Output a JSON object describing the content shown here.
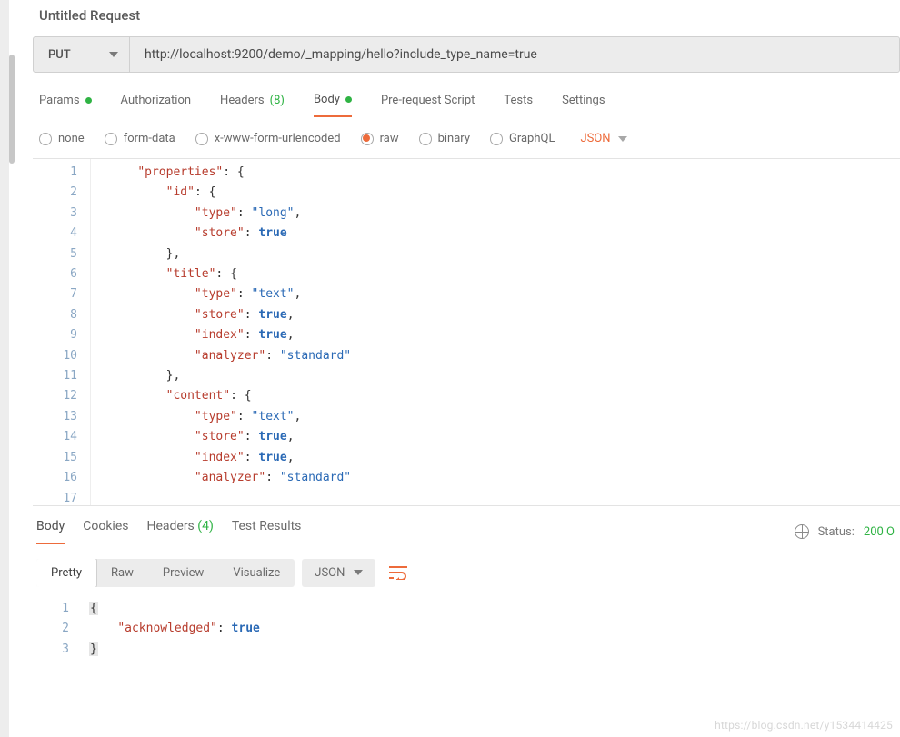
{
  "title": "Untitled Request",
  "request": {
    "method": "PUT",
    "url": "http://localhost:9200/demo/_mapping/hello?include_type_name=true"
  },
  "reqTabs": {
    "params": "Params",
    "paramsDot": true,
    "authorization": "Authorization",
    "headers": "Headers",
    "headersCount": "(8)",
    "body": "Body",
    "bodyDot": true,
    "prerequest": "Pre-request Script",
    "tests": "Tests",
    "settings": "Settings",
    "active": "body"
  },
  "bodyTypes": {
    "none": "none",
    "formdata": "form-data",
    "xwww": "x-www-form-urlencoded",
    "raw": "raw",
    "binary": "binary",
    "graphql": "GraphQL",
    "selected": "raw",
    "format": "JSON"
  },
  "editor": {
    "startLine": 1,
    "lines": [
      {
        "n": 1,
        "indent": 0,
        "tokens": []
      },
      {
        "n": 2,
        "indent": 1,
        "tokens": [
          [
            "key",
            "\"properties\""
          ],
          [
            "punct",
            ": {"
          ]
        ]
      },
      {
        "n": 3,
        "indent": 2,
        "tokens": [
          [
            "key",
            "\"id\""
          ],
          [
            "punct",
            ": {"
          ]
        ]
      },
      {
        "n": 4,
        "indent": 3,
        "tokens": [
          [
            "key",
            "\"type\""
          ],
          [
            "punct",
            ": "
          ],
          [
            "str",
            "\"long\""
          ],
          [
            "punct",
            ","
          ]
        ]
      },
      {
        "n": 5,
        "indent": 3,
        "tokens": [
          [
            "key",
            "\"store\""
          ],
          [
            "punct",
            ": "
          ],
          [
            "kw",
            "true"
          ]
        ]
      },
      {
        "n": 6,
        "indent": 2,
        "tokens": [
          [
            "punct",
            "},"
          ]
        ]
      },
      {
        "n": 7,
        "indent": 2,
        "tokens": [
          [
            "key",
            "\"title\""
          ],
          [
            "punct",
            ": {"
          ]
        ]
      },
      {
        "n": 8,
        "indent": 3,
        "tokens": [
          [
            "key",
            "\"type\""
          ],
          [
            "punct",
            ": "
          ],
          [
            "str",
            "\"text\""
          ],
          [
            "punct",
            ","
          ]
        ]
      },
      {
        "n": 9,
        "indent": 3,
        "tokens": [
          [
            "key",
            "\"store\""
          ],
          [
            "punct",
            ": "
          ],
          [
            "kw",
            "true"
          ],
          [
            "punct",
            ","
          ]
        ]
      },
      {
        "n": 10,
        "indent": 3,
        "tokens": [
          [
            "key",
            "\"index\""
          ],
          [
            "punct",
            ": "
          ],
          [
            "kw",
            "true"
          ],
          [
            "punct",
            ","
          ]
        ]
      },
      {
        "n": 11,
        "indent": 3,
        "tokens": [
          [
            "key",
            "\"analyzer\""
          ],
          [
            "punct",
            ": "
          ],
          [
            "str",
            "\"standard\""
          ]
        ]
      },
      {
        "n": 12,
        "indent": 2,
        "tokens": [
          [
            "punct",
            "},"
          ]
        ]
      },
      {
        "n": 13,
        "indent": 2,
        "tokens": [
          [
            "key",
            "\"content\""
          ],
          [
            "punct",
            ": {"
          ]
        ]
      },
      {
        "n": 14,
        "indent": 3,
        "tokens": [
          [
            "key",
            "\"type\""
          ],
          [
            "punct",
            ": "
          ],
          [
            "str",
            "\"text\""
          ],
          [
            "punct",
            ","
          ]
        ]
      },
      {
        "n": 15,
        "indent": 3,
        "tokens": [
          [
            "key",
            "\"store\""
          ],
          [
            "punct",
            ": "
          ],
          [
            "kw",
            "true"
          ],
          [
            "punct",
            ","
          ]
        ]
      },
      {
        "n": 16,
        "indent": 3,
        "tokens": [
          [
            "key",
            "\"index\""
          ],
          [
            "punct",
            ": "
          ],
          [
            "kw",
            "true"
          ],
          [
            "punct",
            ","
          ]
        ]
      },
      {
        "n": 17,
        "indent": 3,
        "tokens": [
          [
            "key",
            "\"analyzer\""
          ],
          [
            "punct",
            ": "
          ],
          [
            "str",
            "\"standard\""
          ]
        ]
      }
    ]
  },
  "respTabs": {
    "body": "Body",
    "cookies": "Cookies",
    "headers": "Headers",
    "headersCount": "(4)",
    "testresults": "Test Results",
    "active": "body",
    "statusLabel": "Status:",
    "statusValue": "200 O"
  },
  "respToolbar": {
    "pretty": "Pretty",
    "raw": "Raw",
    "preview": "Preview",
    "visualize": "Visualize",
    "format": "JSON",
    "active": "pretty"
  },
  "respEditor": {
    "lines": [
      {
        "n": 1,
        "indent": 0,
        "tokens": [
          [
            "hl",
            "{"
          ]
        ]
      },
      {
        "n": 2,
        "indent": 1,
        "tokens": [
          [
            "key",
            "\"acknowledged\""
          ],
          [
            "punct",
            ": "
          ],
          [
            "kw",
            "true"
          ]
        ]
      },
      {
        "n": 3,
        "indent": 0,
        "tokens": [
          [
            "hl",
            "}"
          ]
        ]
      }
    ]
  },
  "colors": {
    "accent": "#ed6b3b",
    "green": "#2fb344",
    "key": "#b73c2d",
    "string": "#2a69b5",
    "bgPanel": "#ececec",
    "border": "#d0d0d0"
  },
  "watermark": "https://blog.csdn.net/y1534414425"
}
